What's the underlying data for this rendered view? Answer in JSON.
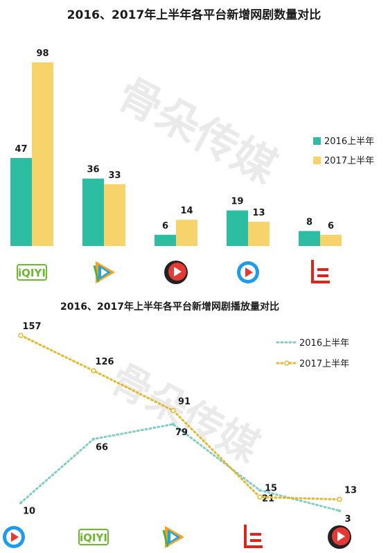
{
  "colors": {
    "series2016": "#2dbda2",
    "series2017": "#f7d46b",
    "dots2016": "#7dcec3",
    "dots2017": "#e8b62a"
  },
  "watermark": "骨朵传媒",
  "chart_data": [
    {
      "type": "bar",
      "title": "2016、2017年上半年各平台新增网剧数量对比",
      "categories": [
        "iQIYI",
        "腾讯视频",
        "优酷",
        "搜狐视频",
        "乐视视频"
      ],
      "category_icons": [
        "iqiyi-logo",
        "tencent-video-logo",
        "youku-logo",
        "sohu-video-logo",
        "letv-logo"
      ],
      "series": [
        {
          "name": "2016上半年",
          "values": [
            47,
            36,
            6,
            19,
            8
          ]
        },
        {
          "name": "2017上半年",
          "values": [
            98,
            33,
            14,
            13,
            6
          ]
        }
      ],
      "legend_position": "right",
      "grid": false
    },
    {
      "type": "line",
      "title": "2016、2017年上半年各平台新增网剧播放量对比",
      "categories": [
        "搜狐视频",
        "iQIYI",
        "腾讯视频",
        "乐视视频",
        "优酷"
      ],
      "category_icons": [
        "sohu-video-logo",
        "iqiyi-logo",
        "tencent-video-logo",
        "letv-logo",
        "youku-logo"
      ],
      "series": [
        {
          "name": "2016上半年",
          "values": [
            10,
            66,
            79,
            21,
            3
          ],
          "style": "dotted"
        },
        {
          "name": "2017上半年",
          "values": [
            157,
            126,
            91,
            15,
            13
          ],
          "style": "dotted-with-markers"
        }
      ],
      "legend_position": "top-right",
      "grid": false
    }
  ]
}
